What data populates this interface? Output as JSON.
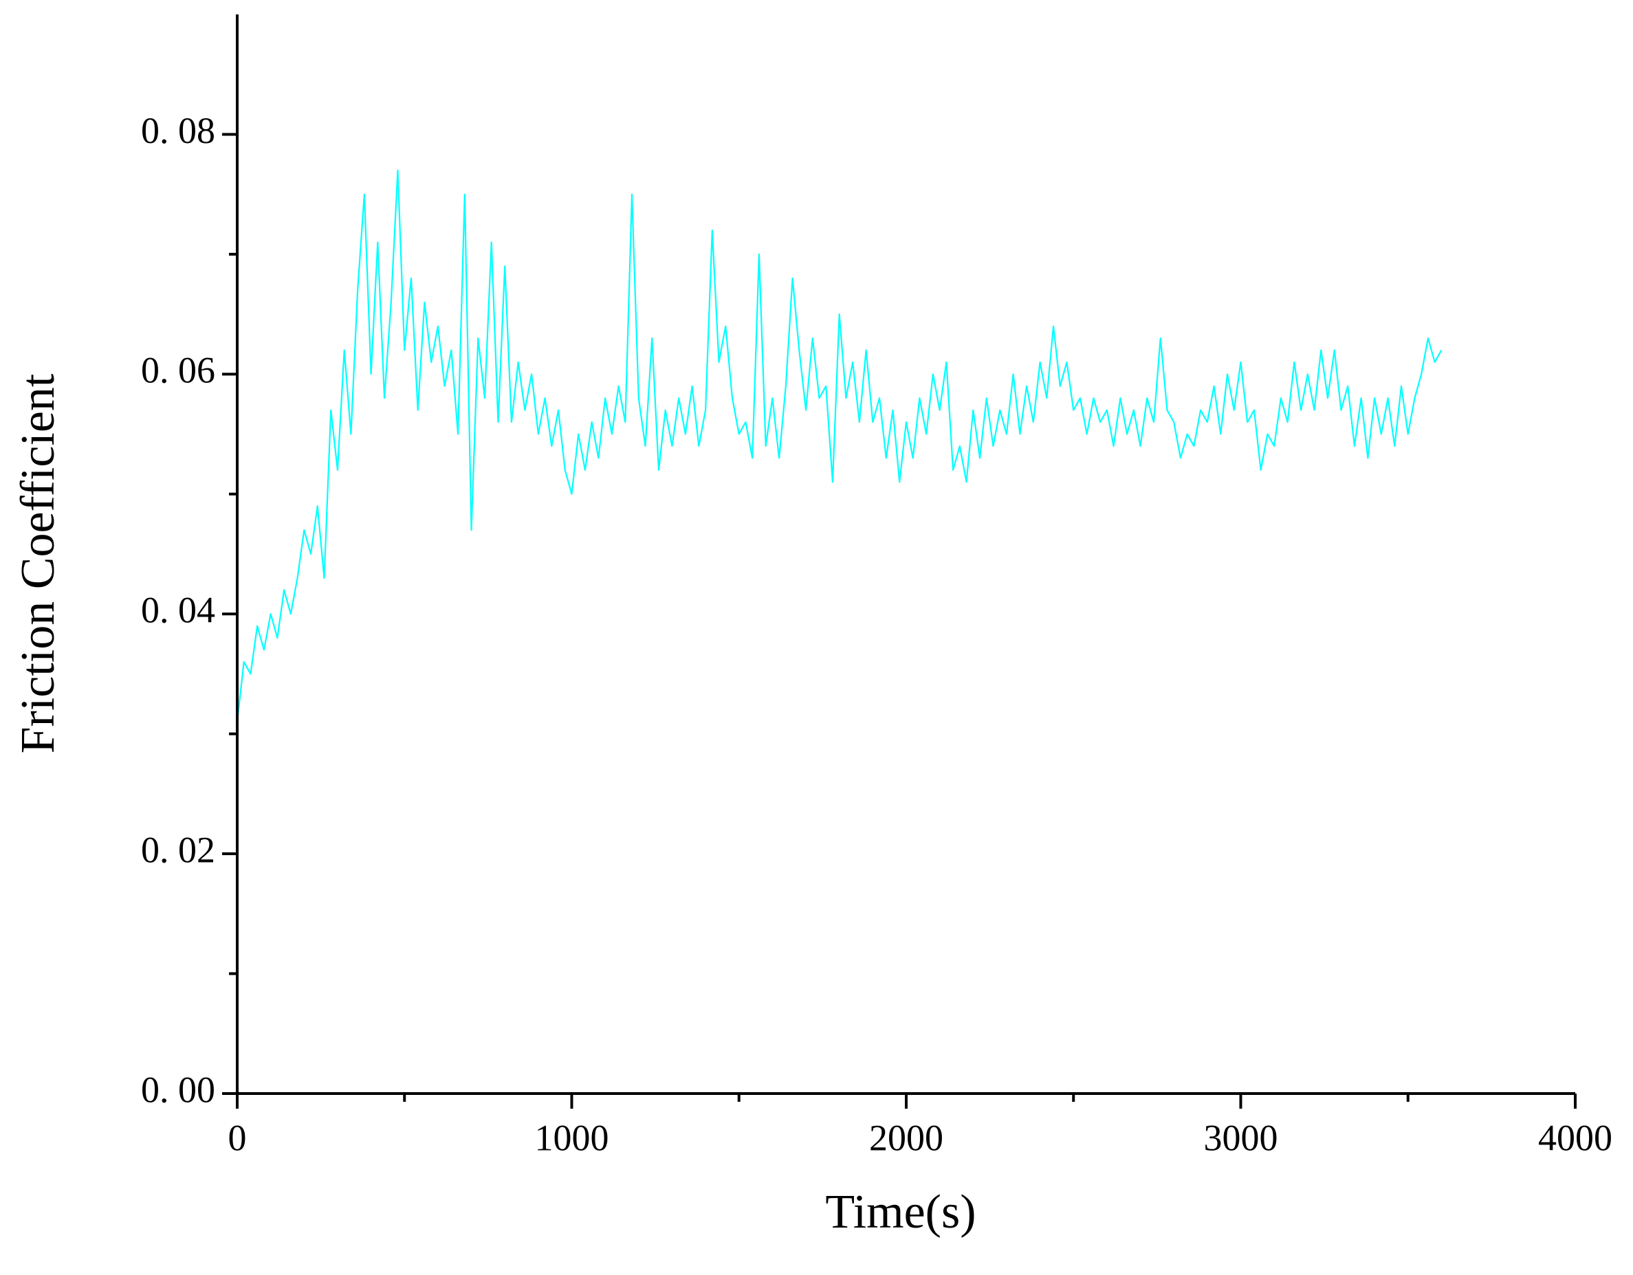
{
  "chart_data": {
    "type": "line",
    "x_label": "Time(s)",
    "y_label": "Friction Coefficient",
    "color": "#00ffff",
    "xlim": [
      0,
      4000
    ],
    "xticks": [
      0,
      1000,
      2000,
      3000,
      4000
    ],
    "xminorticks": [
      500,
      1500,
      2500,
      3500
    ],
    "ylim": [
      0,
      0.09
    ],
    "yticks": [
      {
        "value": 0,
        "label": "0. 00"
      },
      {
        "value": 0.02,
        "label": "0. 02"
      },
      {
        "value": 0.04,
        "label": "0. 04"
      },
      {
        "value": 0.06,
        "label": "0. 06"
      },
      {
        "value": 0.08,
        "label": "0. 08"
      }
    ],
    "yminorticks": [
      0.01,
      0.03,
      0.05,
      0.07
    ],
    "x": [
      0,
      20,
      40,
      60,
      80,
      100,
      120,
      140,
      160,
      180,
      200,
      220,
      240,
      260,
      280,
      300,
      320,
      340,
      360,
      380,
      400,
      420,
      440,
      460,
      480,
      500,
      520,
      540,
      560,
      580,
      600,
      620,
      640,
      660,
      680,
      700,
      720,
      740,
      760,
      780,
      800,
      820,
      840,
      860,
      880,
      900,
      920,
      940,
      960,
      980,
      1000,
      1020,
      1040,
      1060,
      1080,
      1100,
      1120,
      1140,
      1160,
      1180,
      1200,
      1220,
      1240,
      1260,
      1280,
      1300,
      1320,
      1340,
      1360,
      1380,
      1400,
      1420,
      1440,
      1460,
      1480,
      1500,
      1520,
      1540,
      1560,
      1580,
      1600,
      1620,
      1640,
      1660,
      1680,
      1700,
      1720,
      1740,
      1760,
      1780,
      1800,
      1820,
      1840,
      1860,
      1880,
      1900,
      1920,
      1940,
      1960,
      1980,
      2000,
      2020,
      2040,
      2060,
      2080,
      2100,
      2120,
      2140,
      2160,
      2180,
      2200,
      2220,
      2240,
      2260,
      2280,
      2300,
      2320,
      2340,
      2360,
      2380,
      2400,
      2420,
      2440,
      2460,
      2480,
      2500,
      2520,
      2540,
      2560,
      2580,
      2600,
      2620,
      2640,
      2660,
      2680,
      2700,
      2720,
      2740,
      2760,
      2780,
      2800,
      2820,
      2840,
      2860,
      2880,
      2900,
      2920,
      2940,
      2960,
      2980,
      3000,
      3020,
      3040,
      3060,
      3080,
      3100,
      3120,
      3140,
      3160,
      3180,
      3200,
      3220,
      3240,
      3260,
      3280,
      3300,
      3320,
      3340,
      3360,
      3380,
      3400,
      3420,
      3440,
      3460,
      3480,
      3500,
      3520,
      3540,
      3560,
      3580,
      3600
    ],
    "values": [
      0.031,
      0.036,
      0.035,
      0.039,
      0.037,
      0.04,
      0.038,
      0.042,
      0.04,
      0.043,
      0.047,
      0.045,
      0.049,
      0.043,
      0.057,
      0.052,
      0.062,
      0.055,
      0.067,
      0.075,
      0.06,
      0.071,
      0.058,
      0.066,
      0.077,
      0.062,
      0.068,
      0.057,
      0.066,
      0.061,
      0.064,
      0.059,
      0.062,
      0.055,
      0.075,
      0.047,
      0.063,
      0.058,
      0.071,
      0.056,
      0.069,
      0.056,
      0.061,
      0.057,
      0.06,
      0.055,
      0.058,
      0.054,
      0.057,
      0.052,
      0.05,
      0.055,
      0.052,
      0.056,
      0.053,
      0.058,
      0.055,
      0.059,
      0.056,
      0.075,
      0.058,
      0.054,
      0.063,
      0.052,
      0.057,
      0.054,
      0.058,
      0.055,
      0.059,
      0.054,
      0.057,
      0.072,
      0.061,
      0.064,
      0.058,
      0.055,
      0.056,
      0.053,
      0.07,
      0.054,
      0.058,
      0.053,
      0.059,
      0.068,
      0.062,
      0.057,
      0.063,
      0.058,
      0.059,
      0.051,
      0.065,
      0.058,
      0.061,
      0.056,
      0.062,
      0.056,
      0.058,
      0.053,
      0.057,
      0.051,
      0.056,
      0.053,
      0.058,
      0.055,
      0.06,
      0.057,
      0.061,
      0.052,
      0.054,
      0.051,
      0.057,
      0.053,
      0.058,
      0.054,
      0.057,
      0.055,
      0.06,
      0.055,
      0.059,
      0.056,
      0.061,
      0.058,
      0.064,
      0.059,
      0.061,
      0.057,
      0.058,
      0.055,
      0.058,
      0.056,
      0.057,
      0.054,
      0.058,
      0.055,
      0.057,
      0.054,
      0.058,
      0.056,
      0.063,
      0.057,
      0.056,
      0.053,
      0.055,
      0.054,
      0.057,
      0.056,
      0.059,
      0.055,
      0.06,
      0.057,
      0.061,
      0.056,
      0.057,
      0.052,
      0.055,
      0.054,
      0.058,
      0.056,
      0.061,
      0.057,
      0.06,
      0.057,
      0.062,
      0.058,
      0.062,
      0.057,
      0.059,
      0.054,
      0.058,
      0.053,
      0.058,
      0.055,
      0.058,
      0.054,
      0.059,
      0.055,
      0.058,
      0.06,
      0.063,
      0.061,
      0.062
    ]
  }
}
